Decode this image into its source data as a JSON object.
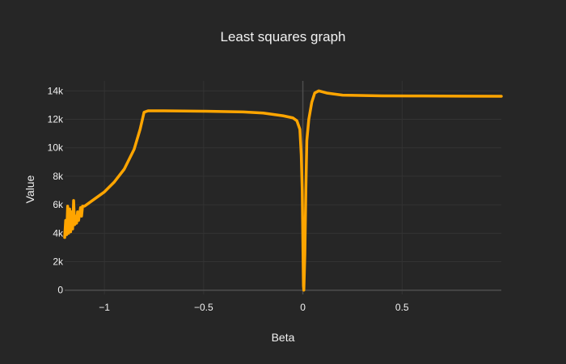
{
  "chart_data": {
    "type": "line",
    "title": "Least squares graph",
    "xlabel": "Beta",
    "ylabel": "Value",
    "xlim": [
      -1.2,
      1.0
    ],
    "ylim": [
      -300,
      14700
    ],
    "x_ticks": [
      -1,
      -0.5,
      0,
      0.5
    ],
    "x_tick_labels": [
      "−1",
      "−0.5",
      "0",
      "0.5"
    ],
    "y_ticks": [
      0,
      2000,
      4000,
      6000,
      8000,
      10000,
      12000,
      14000
    ],
    "y_tick_labels": [
      "0",
      "2k",
      "4k",
      "6k",
      "8k",
      "10k",
      "12k",
      "14k"
    ],
    "grid": true,
    "zero_lines": true,
    "legend": "none",
    "background": "#262626",
    "line_color": "#FFA500",
    "grid_color": "#333333",
    "zero_line_color": "#4d4d4d",
    "text_color": "#f2f2f2",
    "series": [
      {
        "values": [
          [
            -1.2,
            3700
          ],
          [
            -1.195,
            4900
          ],
          [
            -1.19,
            3900
          ],
          [
            -1.185,
            5900
          ],
          [
            -1.18,
            4000
          ],
          [
            -1.175,
            5700
          ],
          [
            -1.17,
            4100
          ],
          [
            -1.165,
            5500
          ],
          [
            -1.16,
            4300
          ],
          [
            -1.155,
            6300
          ],
          [
            -1.15,
            4600
          ],
          [
            -1.145,
            5200
          ],
          [
            -1.14,
            4700
          ],
          [
            -1.135,
            5500
          ],
          [
            -1.13,
            4900
          ],
          [
            -1.12,
            5800
          ],
          [
            -1.115,
            5200
          ],
          [
            -1.11,
            5900
          ],
          [
            -1.1,
            5900
          ],
          [
            -1.05,
            6400
          ],
          [
            -1.0,
            6900
          ],
          [
            -0.95,
            7600
          ],
          [
            -0.9,
            8500
          ],
          [
            -0.85,
            9900
          ],
          [
            -0.82,
            11300
          ],
          [
            -0.8,
            12500
          ],
          [
            -0.78,
            12600
          ],
          [
            -0.7,
            12600
          ],
          [
            -0.5,
            12570
          ],
          [
            -0.3,
            12520
          ],
          [
            -0.2,
            12440
          ],
          [
            -0.1,
            12250
          ],
          [
            -0.05,
            12100
          ],
          [
            -0.03,
            11900
          ],
          [
            -0.015,
            11300
          ],
          [
            -0.008,
            9500
          ],
          [
            -0.003,
            7000
          ],
          [
            0.0,
            3500
          ],
          [
            0.003,
            300
          ],
          [
            0.005,
            0
          ],
          [
            0.01,
            2500
          ],
          [
            0.015,
            7000
          ],
          [
            0.02,
            10500
          ],
          [
            0.03,
            12000
          ],
          [
            0.045,
            13200
          ],
          [
            0.06,
            13850
          ],
          [
            0.08,
            14000
          ],
          [
            0.12,
            13850
          ],
          [
            0.2,
            13700
          ],
          [
            0.4,
            13650
          ],
          [
            0.6,
            13640
          ],
          [
            0.8,
            13630
          ],
          [
            1.0,
            13620
          ]
        ]
      }
    ]
  }
}
